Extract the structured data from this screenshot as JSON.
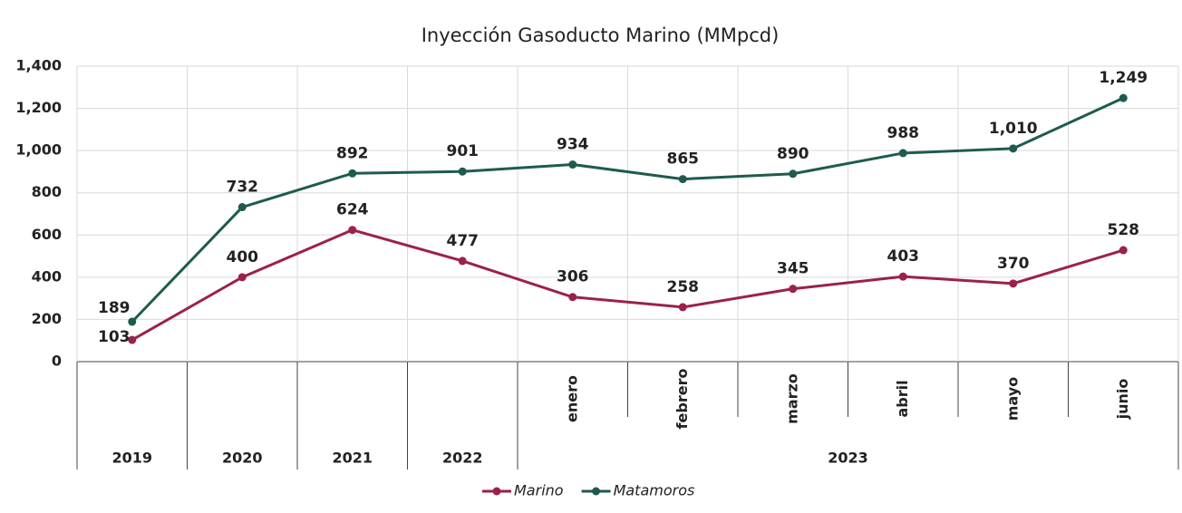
{
  "chart_data": {
    "type": "line",
    "title": "Inyección Gasoducto Marino (MMpcd)",
    "categories": [
      "2019",
      "2020",
      "2021",
      "2022",
      "enero",
      "febrero",
      "marzo",
      "abril",
      "mayo",
      "junio"
    ],
    "group": {
      "label": "2023",
      "first": "enero"
    },
    "series": [
      {
        "name": "Marino",
        "color": "#9b2247",
        "values": [
          103,
          400,
          624,
          477,
          306,
          258,
          345,
          403,
          370,
          528
        ]
      },
      {
        "name": "Matamoros",
        "color": "#1e5b4f",
        "values": [
          189,
          732,
          892,
          901,
          934,
          865,
          890,
          988,
          1010,
          1249
        ],
        "value_labels": [
          "189",
          "732",
          "892",
          "901",
          "934",
          "865",
          "890",
          "988",
          "1,010",
          "1,249"
        ]
      }
    ],
    "ylim": [
      0,
      1400
    ],
    "yticks": [
      0,
      200,
      400,
      600,
      800,
      {
        "value": 1000,
        "label": "1,000"
      },
      {
        "value": 1200,
        "label": "1,200"
      },
      {
        "value": 1400,
        "label": "1,400"
      }
    ],
    "grid": true,
    "legend": "bottom"
  }
}
